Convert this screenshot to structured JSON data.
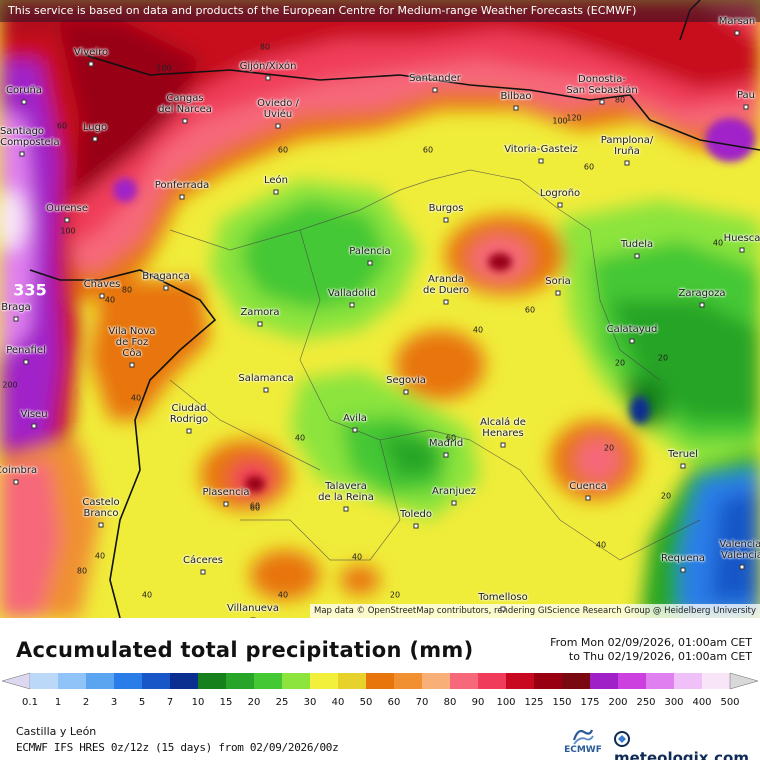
{
  "notice": "This service is based on data and products of the European Centre for Medium-range Weather Forecasts (ECMWF)",
  "attribution": "Map data © OpenStreetMap contributors, rendering GIScience Research Group @ Heidelberg University",
  "title": "Accumulated total precipitation (mm)",
  "period": {
    "from": "From Mon 02/09/2026, 01:00am CET",
    "to": "to Thu 02/19/2026, 01:00am CET"
  },
  "region": "Castilla y León",
  "model": "ECMWF IFS HRES 0z/12z (15 days) from 02/09/2026/00z",
  "logos": {
    "ecmwf": "ECMWF",
    "brand": "meteologix.com"
  },
  "colorscale": {
    "labels": [
      "0.1",
      "1",
      "2",
      "3",
      "5",
      "7",
      "10",
      "15",
      "20",
      "25",
      "30",
      "40",
      "50",
      "60",
      "70",
      "80",
      "90",
      "100",
      "125",
      "150",
      "175",
      "200",
      "250",
      "300",
      "400",
      "500"
    ],
    "colors": [
      "#dcd8f0",
      "#bcd8f8",
      "#90c4f8",
      "#5aa4f0",
      "#2a7de8",
      "#1856c8",
      "#0a2f90",
      "#16801c",
      "#28a428",
      "#44c834",
      "#8ce43c",
      "#f2f03a",
      "#e6d22a",
      "#e8740c",
      "#f09030",
      "#f8b078",
      "#f6687a",
      "#f03c5a",
      "#c8081e",
      "#980012",
      "#7a0810",
      "#a020c8",
      "#cc40e0",
      "#e080f0",
      "#f0c0f8",
      "#f8e6f8",
      "#d8d8d8"
    ]
  },
  "cities": [
    {
      "name": "Viveiro"
    },
    {
      "name": "Gijón/Xixón"
    },
    {
      "name": "Santander"
    },
    {
      "name": "Donostia-\nSan Sebastián"
    },
    {
      "name": "Coruña"
    },
    {
      "name": "Cangas\ndel Narcea"
    },
    {
      "name": "Oviedo /\nUviéu"
    },
    {
      "name": "Bilbao"
    },
    {
      "name": "Lugo"
    },
    {
      "name": "Vitoria-Gasteiz"
    },
    {
      "name": "Pamplona/\nIruña"
    },
    {
      "name": "Ponferrada"
    },
    {
      "name": "León"
    },
    {
      "name": "Burgos"
    },
    {
      "name": "Logroño"
    },
    {
      "name": "Ourense"
    },
    {
      "name": "Palencia"
    },
    {
      "name": "Tudela"
    },
    {
      "name": "Huesca"
    },
    {
      "name": "Bragança"
    },
    {
      "name": "Chaves"
    },
    {
      "name": "Valladolid"
    },
    {
      "name": "Aranda\nde Duero"
    },
    {
      "name": "Soria"
    },
    {
      "name": "Zaragoza"
    },
    {
      "name": "Braga"
    },
    {
      "name": "Zamora"
    },
    {
      "name": "Calatayud"
    },
    {
      "name": "Penafiel"
    },
    {
      "name": "Vila Nova\nde Foz\nCôa"
    },
    {
      "name": "Salamanca"
    },
    {
      "name": "Segovia"
    },
    {
      "name": "Viseu"
    },
    {
      "name": "Ciudad\nRodrigo"
    },
    {
      "name": "Avila"
    },
    {
      "name": "Madrid"
    },
    {
      "name": "Alcalá de\nHenares"
    },
    {
      "name": "Teruel"
    },
    {
      "name": "Coimbra"
    },
    {
      "name": "Plasencia"
    },
    {
      "name": "Talavera\nde la Reina"
    },
    {
      "name": "Aranjuez"
    },
    {
      "name": "Cuenca"
    },
    {
      "name": "Castelo\nBranco"
    },
    {
      "name": "Toledo"
    },
    {
      "name": "Cáceres"
    },
    {
      "name": "Requena"
    },
    {
      "name": "Valencia/\nValència"
    },
    {
      "name": "Tomelloso"
    },
    {
      "name": "Villanueva"
    },
    {
      "name": "Marsan"
    },
    {
      "name": "Pau"
    },
    {
      "name": "Santiago\nde Compostela"
    }
  ],
  "contour_labels": [
    "80",
    "100",
    "100",
    "120",
    "80",
    "60",
    "80",
    "60",
    "60",
    "40",
    "40",
    "60",
    "40",
    "40",
    "60",
    "60",
    "40",
    "40",
    "40",
    "20",
    "20",
    "60",
    "20",
    "20",
    "40",
    "40",
    "20",
    "40",
    "80",
    "60",
    "100",
    "200",
    "335"
  ]
}
